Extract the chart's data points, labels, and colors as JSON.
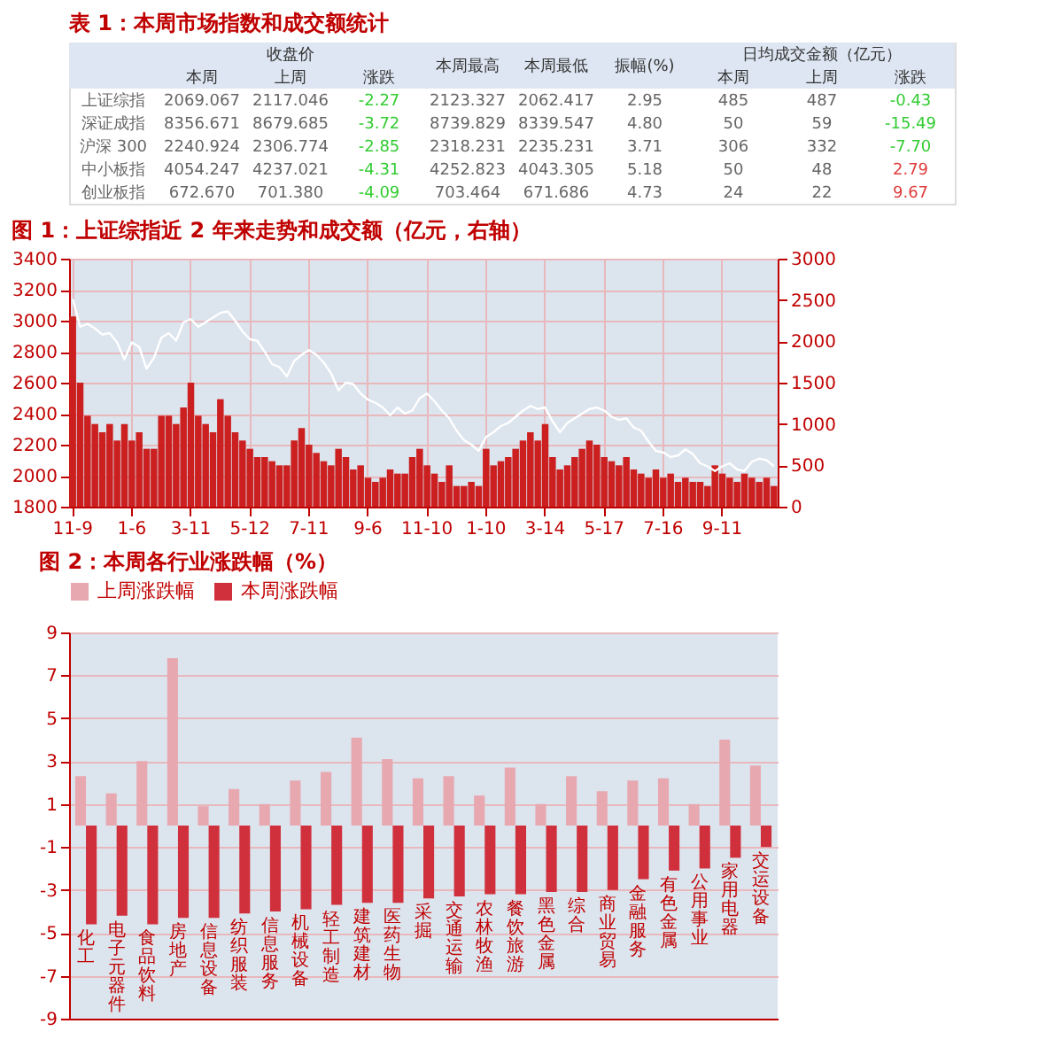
{
  "chart_data": [
    {
      "type": "other",
      "title": "表 1：本周市场指数和成交额统计",
      "annotations": [
        "收盘价",
        "日均成交金额（亿元）"
      ],
      "categories": [
        "本周",
        "上周",
        "涨跌",
        "本周最高",
        "本周最低",
        "振幅(%)",
        "本周",
        "上周",
        "涨跌"
      ],
      "y_categories": [
        "上证综指",
        "深证成指",
        "沪深 300",
        "中小板指",
        "创业板指"
      ],
      "cell_labels": [
        [
          "2069.067",
          "2117.046",
          "-2.27",
          "2123.327",
          "2062.417",
          "2.95",
          "485",
          "487",
          "-0.43"
        ],
        [
          "8356.671",
          "8679.685",
          "-3.72",
          "8739.829",
          "8339.547",
          "4.80",
          "50",
          "59",
          "-15.49"
        ],
        [
          "2240.924",
          "2306.774",
          "-2.85",
          "2318.231",
          "2235.231",
          "3.71",
          "306",
          "332",
          "-7.70"
        ],
        [
          "4054.247",
          "4237.021",
          "-4.31",
          "4252.823",
          "4043.305",
          "5.18",
          "50",
          "48",
          "2.79"
        ],
        [
          "672.670",
          "701.380",
          "-4.09",
          "703.464",
          "671.686",
          "4.73",
          "24",
          "22",
          "9.67"
        ]
      ],
      "colors": [
        [
          "#666666",
          "#666666",
          "#33cc33",
          "#666666",
          "#666666",
          "#666666",
          "#666666",
          "#666666",
          "#33cc33"
        ],
        [
          "#666666",
          "#666666",
          "#33cc33",
          "#666666",
          "#666666",
          "#666666",
          "#666666",
          "#666666",
          "#33cc33"
        ],
        [
          "#666666",
          "#666666",
          "#33cc33",
          "#666666",
          "#666666",
          "#666666",
          "#666666",
          "#666666",
          "#33cc33"
        ],
        [
          "#666666",
          "#666666",
          "#33cc33",
          "#666666",
          "#666666",
          "#666666",
          "#666666",
          "#666666",
          "#e03c3c"
        ],
        [
          "#666666",
          "#666666",
          "#33cc33",
          "#666666",
          "#666666",
          "#666666",
          "#666666",
          "#666666",
          "#e03c3c"
        ]
      ]
    },
    {
      "type": "bar",
      "title": "图 1：上证综指近 2 年来走势和成交额（亿元，右轴）",
      "categories": [
        "11-9",
        null,
        null,
        null,
        null,
        null,
        null,
        null,
        "1-6",
        null,
        null,
        null,
        null,
        null,
        null,
        null,
        "3-11",
        null,
        null,
        null,
        null,
        null,
        null,
        null,
        "5-12",
        null,
        null,
        null,
        null,
        null,
        null,
        null,
        "7-11",
        null,
        null,
        null,
        null,
        null,
        null,
        null,
        "9-6",
        null,
        null,
        null,
        null,
        null,
        null,
        null,
        "11-10",
        null,
        null,
        null,
        null,
        null,
        null,
        null,
        "1-10",
        null,
        null,
        null,
        null,
        null,
        null,
        null,
        "3-14",
        null,
        null,
        null,
        null,
        null,
        null,
        null,
        "5-17",
        null,
        null,
        null,
        null,
        null,
        null,
        null,
        "7-16",
        null,
        null,
        null,
        null,
        null,
        null,
        null,
        "9-11",
        null,
        null,
        null,
        null,
        null,
        null,
        null
      ],
      "ylim": [
        1800,
        3400
      ],
      "yticks": [
        1800,
        2000,
        2200,
        2400,
        2600,
        2800,
        3000,
        3200,
        3400
      ],
      "y2lim": [
        0,
        3000
      ],
      "y2ticks": [
        0,
        500,
        1000,
        1500,
        2000,
        2500,
        3000
      ],
      "grid": true,
      "legend": false,
      "series": [
        {
          "type": "bar",
          "axis": "y2",
          "color": "#cc1f1f",
          "values": [
            2300,
            1500,
            1100,
            1000,
            900,
            1000,
            800,
            1000,
            800,
            900,
            700,
            700,
            1100,
            1100,
            1000,
            1200,
            1500,
            1100,
            1000,
            900,
            1300,
            1100,
            900,
            800,
            700,
            600,
            600,
            550,
            500,
            500,
            800,
            950,
            750,
            650,
            550,
            500,
            700,
            600,
            450,
            500,
            350,
            300,
            350,
            450,
            400,
            400,
            600,
            700,
            500,
            400,
            300,
            500,
            250,
            250,
            300,
            250,
            700,
            500,
            550,
            600,
            700,
            800,
            900,
            800,
            1000,
            600,
            450,
            500,
            600,
            700,
            800,
            750,
            600,
            550,
            500,
            600,
            450,
            400,
            350,
            450,
            350,
            400,
            300,
            350,
            300,
            300,
            250,
            500,
            400,
            350,
            300,
            400,
            350,
            300,
            350,
            250
          ]
        },
        {
          "type": "line",
          "axis": "y",
          "color": "#ffffff",
          "values": [
            3140,
            2960,
            2980,
            2950,
            2910,
            2920,
            2860,
            2750,
            2860,
            2830,
            2690,
            2760,
            2890,
            2920,
            2870,
            2990,
            3010,
            2960,
            2990,
            3020,
            3050,
            3060,
            3000,
            2930,
            2880,
            2870,
            2800,
            2720,
            2700,
            2640,
            2740,
            2780,
            2810,
            2780,
            2730,
            2660,
            2550,
            2600,
            2590,
            2530,
            2490,
            2470,
            2440,
            2390,
            2440,
            2400,
            2420,
            2500,
            2530,
            2480,
            2420,
            2370,
            2290,
            2230,
            2200,
            2160,
            2250,
            2280,
            2320,
            2340,
            2380,
            2420,
            2450,
            2430,
            2440,
            2350,
            2280,
            2340,
            2370,
            2400,
            2430,
            2440,
            2420,
            2380,
            2360,
            2370,
            2310,
            2290,
            2220,
            2160,
            2150,
            2120,
            2130,
            2170,
            2140,
            2080,
            2060,
            2030,
            2060,
            2080,
            2040,
            2030,
            2090,
            2110,
            2100,
            2060
          ]
        }
      ]
    },
    {
      "type": "bar",
      "title": "图 2：本周各行业涨跌幅（%）",
      "categories": [
        "化工",
        "电子元器件",
        "食品饮料",
        "房地产",
        "信息设备",
        "纺织服装",
        "信息服务",
        "机械设备",
        "轻工制造",
        "建筑建材",
        "医药生物",
        "采掘",
        "交通运输",
        "农林牧渔",
        "餐饮旅游",
        "黑色金属",
        "综合",
        "商业贸易",
        "金融服务",
        "有色金属",
        "公用事业",
        "家用电器",
        "交运设备"
      ],
      "ylim": [
        -9,
        9
      ],
      "yticks": [
        -9,
        -7,
        -5,
        -3,
        -1,
        1,
        3,
        5,
        7,
        9
      ],
      "grid": "y",
      "legend": "top",
      "series": [
        {
          "name": "上周涨跌幅",
          "color": "#e8a8b0",
          "values": [
            2.3,
            1.5,
            3.0,
            7.8,
            0.9,
            1.7,
            1.0,
            2.1,
            2.5,
            4.1,
            3.1,
            2.2,
            2.3,
            1.4,
            2.7,
            1.0,
            2.3,
            1.6,
            2.1,
            2.2,
            1.0,
            4.0,
            2.8
          ]
        },
        {
          "name": "本周涨跌幅",
          "color": "#d0303c",
          "values": [
            -4.6,
            -4.2,
            -4.6,
            -4.3,
            -4.3,
            -4.1,
            -4.0,
            -3.9,
            -3.7,
            -3.6,
            -3.6,
            -3.4,
            -3.3,
            -3.2,
            -3.2,
            -3.1,
            -3.1,
            -3.0,
            -2.5,
            -2.1,
            -2.0,
            -1.5,
            -1.0
          ]
        }
      ]
    }
  ]
}
